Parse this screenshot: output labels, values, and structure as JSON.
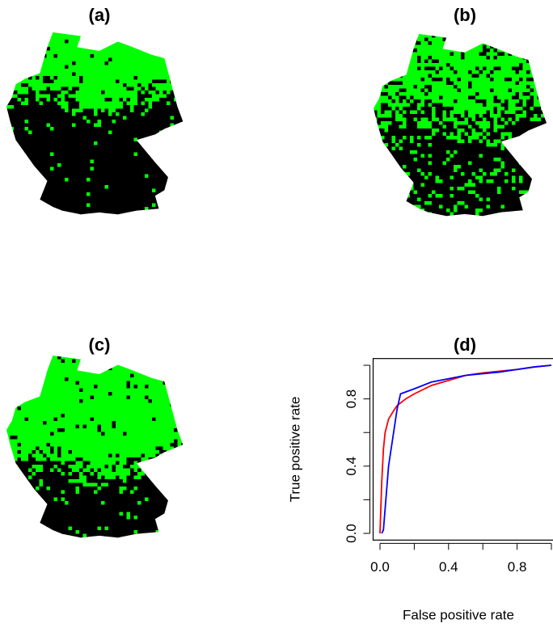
{
  "panels": [
    {
      "title": "(a)"
    },
    {
      "title": "(b)"
    },
    {
      "title": "(c)"
    }
  ],
  "chart_data": {
    "type": "line",
    "title": "(d)",
    "x_label": "False positive rate",
    "y_label": "True positive rate",
    "xlim": [
      -0.04,
      1.04
    ],
    "ylim": [
      -0.04,
      1.04
    ],
    "xticks": [
      {
        "value": 0,
        "label": "0.0"
      },
      {
        "value": 0.4,
        "label": "0.4"
      },
      {
        "value": 0.8,
        "label": "0.8"
      }
    ],
    "xminorticks": [
      0.2,
      0.6,
      1.0
    ],
    "yticks": [
      {
        "value": 0,
        "label": "0.0"
      },
      {
        "value": 0.4,
        "label": "0.4"
      },
      {
        "value": 0.8,
        "label": "0.8"
      }
    ],
    "yminorticks": [
      0.2,
      0.6,
      1.0
    ],
    "series": [
      {
        "color": "#ff0000",
        "x": [
          0,
          0.01,
          0.02,
          0.03,
          0.05,
          0.08,
          0.1,
          0.15,
          0.2,
          0.3,
          0.4,
          0.5,
          0.6,
          0.8,
          0.9,
          1
        ],
        "values": [
          0,
          0.3,
          0.5,
          0.6,
          0.68,
          0.73,
          0.76,
          0.8,
          0.83,
          0.88,
          0.91,
          0.94,
          0.955,
          0.975,
          0.99,
          1
        ]
      },
      {
        "color": "#0000ff",
        "x": [
          0.01,
          0.02,
          0.05,
          0.1,
          0.12,
          0.2,
          0.3,
          0.4,
          0.5,
          0.7,
          0.9,
          1
        ],
        "values": [
          0,
          0.02,
          0.4,
          0.74,
          0.83,
          0.86,
          0.9,
          0.92,
          0.94,
          0.96,
          0.99,
          1
        ]
      }
    ]
  }
}
